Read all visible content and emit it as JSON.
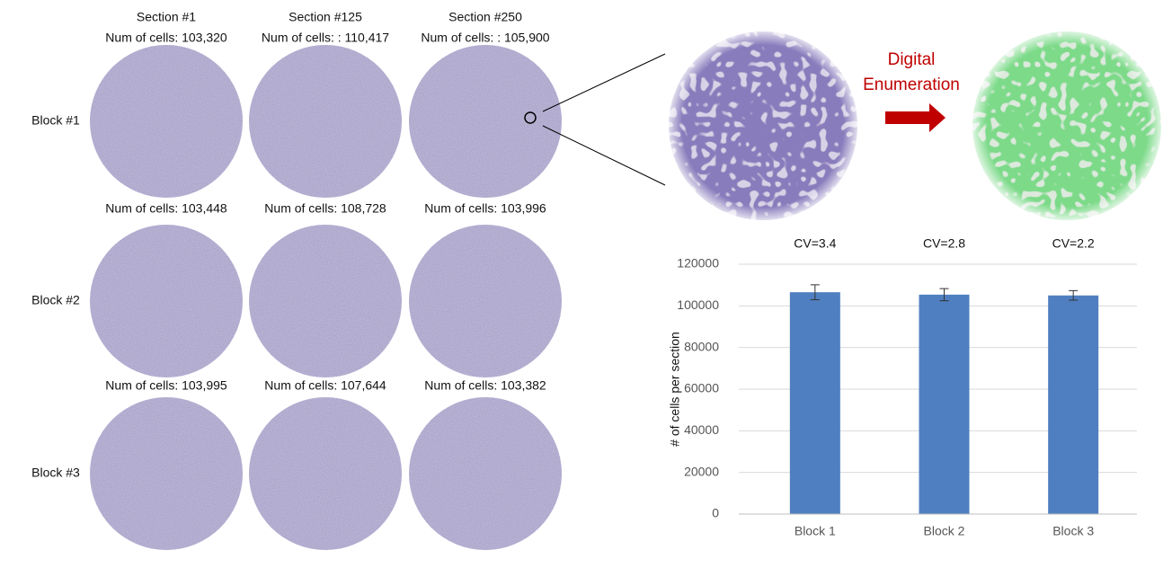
{
  "sections": [
    "Section #1",
    "Section #125",
    "Section #250"
  ],
  "blocks": [
    {
      "label": "Block #1",
      "counts": [
        "Num of cells: 103,320",
        "Num of cells: : 110,417",
        "Num of cells: : 105,900"
      ]
    },
    {
      "label": "Block #2",
      "counts": [
        "Num of cells: 103,448",
        "Num of cells: 108,728",
        "Num of cells: 103,996"
      ]
    },
    {
      "label": "Block #3",
      "counts": [
        "Num of cells: 103,995",
        "Num of cells: 107,644",
        "Num of cells: 103,382"
      ]
    }
  ],
  "zoom_label": [
    "Digital",
    "Enumeration"
  ],
  "chart_data": {
    "type": "bar",
    "ylabel": "# of cells per section",
    "categories": [
      "Block 1",
      "Block 2",
      "Block 3"
    ],
    "values": [
      106546,
      105391,
      105007
    ],
    "errors": [
      3600,
      2900,
      2300
    ],
    "annotations": [
      "CV=3.4",
      "CV=2.8",
      "CV=2.2"
    ],
    "color": "#4f7fc0",
    "ylim": [
      0,
      120000
    ],
    "yticks": [
      0,
      20000,
      40000,
      60000,
      80000,
      100000,
      120000
    ],
    "grid": true
  }
}
